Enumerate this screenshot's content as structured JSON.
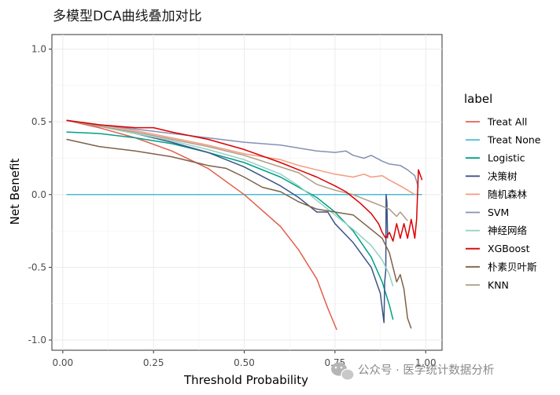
{
  "chart_data": {
    "type": "line",
    "title": "多模型DCA曲线叠加对比",
    "xlabel": "Threshold Probability",
    "ylabel": "Net Benefit",
    "xlim": [
      -0.03,
      1.045
    ],
    "ylim": [
      -1.07,
      1.1
    ],
    "x_ticks": [
      0,
      0.25,
      0.5,
      0.75,
      1.0
    ],
    "x_tick_labels": [
      "0.00",
      "0.25",
      "0.50",
      "0.75",
      "1.00"
    ],
    "y_ticks": [
      -1.0,
      -0.5,
      0.0,
      0.5,
      1.0
    ],
    "y_tick_labels": [
      "-1.0",
      "-0.5",
      "0.0",
      "0.5",
      "1.0"
    ],
    "grid": true,
    "legend_title": "label",
    "legend_position": "right",
    "series": [
      {
        "name": "Treat All",
        "color": "#E4604E",
        "points": [
          [
            0.01,
            0.51
          ],
          [
            0.1,
            0.46
          ],
          [
            0.2,
            0.39
          ],
          [
            0.3,
            0.3
          ],
          [
            0.4,
            0.18
          ],
          [
            0.5,
            0.0
          ],
          [
            0.6,
            -0.22
          ],
          [
            0.65,
            -0.38
          ],
          [
            0.7,
            -0.58
          ],
          [
            0.73,
            -0.78
          ],
          [
            0.755,
            -0.93
          ]
        ]
      },
      {
        "name": "Treat None",
        "color": "#4DBBD5",
        "points": [
          [
            0.01,
            0.0
          ],
          [
            0.99,
            0.0
          ]
        ]
      },
      {
        "name": "Logistic",
        "color": "#00A087",
        "points": [
          [
            0.01,
            0.43
          ],
          [
            0.1,
            0.42
          ],
          [
            0.2,
            0.39
          ],
          [
            0.3,
            0.35
          ],
          [
            0.4,
            0.29
          ],
          [
            0.5,
            0.22
          ],
          [
            0.6,
            0.12
          ],
          [
            0.7,
            -0.02
          ],
          [
            0.75,
            -0.12
          ],
          [
            0.8,
            -0.25
          ],
          [
            0.85,
            -0.43
          ],
          [
            0.88,
            -0.6
          ],
          [
            0.9,
            -0.76
          ],
          [
            0.91,
            -0.86
          ]
        ]
      },
      {
        "name": "决策树",
        "color": "#3C5488",
        "points": [
          [
            0.01,
            0.51
          ],
          [
            0.1,
            0.47
          ],
          [
            0.2,
            0.42
          ],
          [
            0.3,
            0.36
          ],
          [
            0.4,
            0.29
          ],
          [
            0.5,
            0.19
          ],
          [
            0.6,
            0.06
          ],
          [
            0.65,
            -0.02
          ],
          [
            0.7,
            -0.12
          ],
          [
            0.73,
            -0.12
          ],
          [
            0.75,
            -0.2
          ],
          [
            0.8,
            -0.33
          ],
          [
            0.85,
            -0.5
          ],
          [
            0.875,
            -0.68
          ],
          [
            0.885,
            -0.88
          ],
          [
            0.887,
            -0.6
          ],
          [
            0.89,
            -0.52
          ],
          [
            0.891,
            0.0
          ],
          [
            0.893,
            -0.05
          ],
          [
            0.895,
            -0.3
          ]
        ]
      },
      {
        "name": "随机森林",
        "color": "#F39B7F",
        "points": [
          [
            0.01,
            0.51
          ],
          [
            0.1,
            0.48
          ],
          [
            0.2,
            0.44
          ],
          [
            0.3,
            0.39
          ],
          [
            0.4,
            0.34
          ],
          [
            0.5,
            0.28
          ],
          [
            0.6,
            0.24
          ],
          [
            0.65,
            0.2
          ],
          [
            0.7,
            0.17
          ],
          [
            0.75,
            0.14
          ],
          [
            0.8,
            0.12
          ],
          [
            0.83,
            0.14
          ],
          [
            0.85,
            0.12
          ],
          [
            0.88,
            0.13
          ],
          [
            0.9,
            0.1
          ],
          [
            0.93,
            0.06
          ],
          [
            0.95,
            0.03
          ],
          [
            0.97,
            0.0
          ]
        ]
      },
      {
        "name": "SVM",
        "color": "#8491B4",
        "points": [
          [
            0.01,
            0.51
          ],
          [
            0.1,
            0.48
          ],
          [
            0.2,
            0.45
          ],
          [
            0.3,
            0.42
          ],
          [
            0.4,
            0.39
          ],
          [
            0.5,
            0.36
          ],
          [
            0.6,
            0.34
          ],
          [
            0.65,
            0.32
          ],
          [
            0.7,
            0.3
          ],
          [
            0.75,
            0.29
          ],
          [
            0.78,
            0.3
          ],
          [
            0.8,
            0.27
          ],
          [
            0.83,
            0.25
          ],
          [
            0.85,
            0.27
          ],
          [
            0.88,
            0.23
          ],
          [
            0.9,
            0.21
          ],
          [
            0.93,
            0.2
          ],
          [
            0.95,
            0.17
          ],
          [
            0.97,
            0.13
          ],
          [
            0.98,
            0.05
          ]
        ]
      },
      {
        "name": "神经网络",
        "color": "#91D1C2",
        "points": [
          [
            0.01,
            0.51
          ],
          [
            0.1,
            0.47
          ],
          [
            0.2,
            0.42
          ],
          [
            0.3,
            0.37
          ],
          [
            0.4,
            0.31
          ],
          [
            0.5,
            0.24
          ],
          [
            0.6,
            0.14
          ],
          [
            0.65,
            0.06
          ],
          [
            0.7,
            -0.04
          ],
          [
            0.75,
            -0.14
          ],
          [
            0.8,
            -0.24
          ],
          [
            0.85,
            -0.35
          ],
          [
            0.88,
            -0.45
          ],
          [
            0.9,
            -0.55
          ],
          [
            0.91,
            -0.63
          ]
        ]
      },
      {
        "name": "XGBoost",
        "color": "#DC0000",
        "points": [
          [
            0.01,
            0.51
          ],
          [
            0.1,
            0.48
          ],
          [
            0.2,
            0.46
          ],
          [
            0.25,
            0.46
          ],
          [
            0.3,
            0.43
          ],
          [
            0.4,
            0.38
          ],
          [
            0.5,
            0.31
          ],
          [
            0.6,
            0.22
          ],
          [
            0.7,
            0.12
          ],
          [
            0.75,
            0.06
          ],
          [
            0.78,
            0.02
          ],
          [
            0.8,
            -0.02
          ],
          [
            0.82,
            -0.06
          ],
          [
            0.85,
            -0.13
          ],
          [
            0.87,
            -0.2
          ],
          [
            0.88,
            -0.26
          ],
          [
            0.89,
            -0.3
          ],
          [
            0.9,
            -0.26
          ],
          [
            0.91,
            -0.32
          ],
          [
            0.92,
            -0.2
          ],
          [
            0.93,
            -0.3
          ],
          [
            0.94,
            -0.2
          ],
          [
            0.95,
            -0.3
          ],
          [
            0.96,
            -0.17
          ],
          [
            0.97,
            -0.3
          ],
          [
            0.975,
            -0.17
          ],
          [
            0.98,
            0.17
          ],
          [
            0.99,
            0.1
          ]
        ]
      },
      {
        "name": "朴素贝叶斯",
        "color": "#7E6148",
        "points": [
          [
            0.01,
            0.38
          ],
          [
            0.1,
            0.33
          ],
          [
            0.2,
            0.3
          ],
          [
            0.3,
            0.26
          ],
          [
            0.4,
            0.2
          ],
          [
            0.45,
            0.18
          ],
          [
            0.5,
            0.12
          ],
          [
            0.55,
            0.05
          ],
          [
            0.6,
            0.02
          ],
          [
            0.65,
            -0.05
          ],
          [
            0.7,
            -0.1
          ],
          [
            0.75,
            -0.12
          ],
          [
            0.8,
            -0.14
          ],
          [
            0.85,
            -0.24
          ],
          [
            0.88,
            -0.3
          ],
          [
            0.9,
            -0.4
          ],
          [
            0.91,
            -0.5
          ],
          [
            0.92,
            -0.6
          ],
          [
            0.93,
            -0.55
          ],
          [
            0.94,
            -0.65
          ],
          [
            0.95,
            -0.85
          ],
          [
            0.96,
            -0.92
          ]
        ]
      },
      {
        "name": "KNN",
        "color": "#B09C85",
        "points": [
          [
            0.01,
            0.51
          ],
          [
            0.1,
            0.47
          ],
          [
            0.2,
            0.43
          ],
          [
            0.3,
            0.38
          ],
          [
            0.4,
            0.33
          ],
          [
            0.5,
            0.27
          ],
          [
            0.6,
            0.19
          ],
          [
            0.65,
            0.15
          ],
          [
            0.7,
            0.07
          ],
          [
            0.75,
            0.03
          ],
          [
            0.8,
            0.0
          ],
          [
            0.85,
            -0.05
          ],
          [
            0.88,
            -0.08
          ],
          [
            0.9,
            -0.1
          ],
          [
            0.92,
            -0.15
          ],
          [
            0.93,
            -0.12
          ],
          [
            0.95,
            -0.18
          ]
        ]
      }
    ]
  },
  "watermark": {
    "text": "公众号 · 医学统计数据分析"
  }
}
